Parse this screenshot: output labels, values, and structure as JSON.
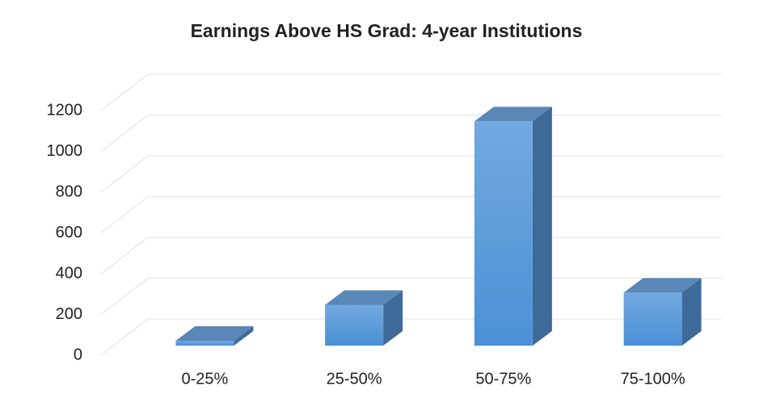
{
  "chart_data": {
    "type": "bar3d",
    "title": "Earnings Above HS Grad: 4-year Institutions",
    "categories": [
      "0-25%",
      "25-50%",
      "50-75%",
      "75-100%"
    ],
    "values": [
      24,
      200,
      1100,
      260
    ],
    "color": "#5b9bd5",
    "ylim": [
      0,
      1200
    ],
    "yticks": [
      0,
      200,
      400,
      600,
      800,
      1000,
      1200
    ],
    "grid": true
  }
}
